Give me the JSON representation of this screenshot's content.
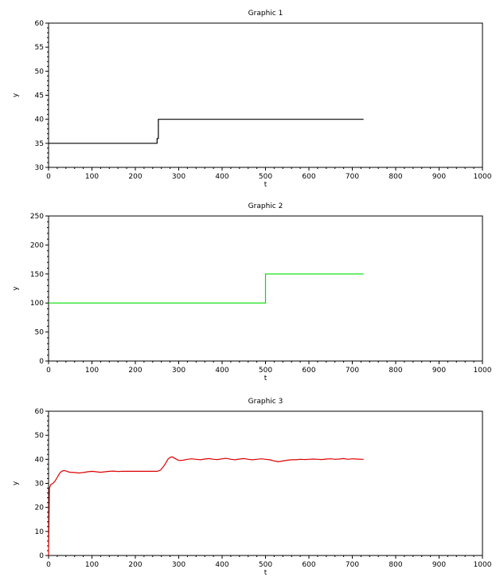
{
  "chart_data": [
    {
      "type": "line",
      "title": "Graphic 1",
      "xlabel": "t",
      "ylabel": "y",
      "xlim": [
        0,
        1000
      ],
      "ylim": [
        30,
        60
      ],
      "xticks": [
        0,
        100,
        200,
        300,
        400,
        500,
        600,
        700,
        800,
        900,
        1000
      ],
      "yticks": [
        30,
        35,
        40,
        45,
        50,
        55,
        60
      ],
      "grid": false,
      "series": [
        {
          "color": "#000000",
          "x": [
            0,
            250,
            250,
            253,
            253,
            726
          ],
          "y": [
            35,
            35,
            36,
            36,
            40,
            40
          ]
        }
      ]
    },
    {
      "type": "line",
      "title": "Graphic 2",
      "xlabel": "t",
      "ylabel": "y",
      "xlim": [
        0,
        1000
      ],
      "ylim": [
        0,
        250
      ],
      "xticks": [
        0,
        100,
        200,
        300,
        400,
        500,
        600,
        700,
        800,
        900,
        1000
      ],
      "yticks": [
        0,
        50,
        100,
        150,
        200,
        250
      ],
      "grid": false,
      "series": [
        {
          "color": "#00dd00",
          "x": [
            0,
            500,
            500,
            726
          ],
          "y": [
            100,
            100,
            150,
            150
          ]
        }
      ]
    },
    {
      "type": "line",
      "title": "Graphic 3",
      "xlabel": "t",
      "ylabel": "y",
      "xlim": [
        0,
        1000
      ],
      "ylim": [
        0,
        60
      ],
      "xticks": [
        0,
        100,
        200,
        300,
        400,
        500,
        600,
        700,
        800,
        900,
        1000
      ],
      "yticks": [
        0,
        10,
        20,
        30,
        40,
        50,
        60
      ],
      "grid": false,
      "series": [
        {
          "color": "#dd0000",
          "x": [
            0,
            2,
            5,
            10,
            15,
            20,
            25,
            30,
            35,
            40,
            45,
            50,
            60,
            70,
            80,
            90,
            100,
            110,
            120,
            130,
            140,
            150,
            160,
            170,
            180,
            190,
            200,
            210,
            220,
            230,
            240,
            250,
            258,
            265,
            270,
            275,
            280,
            285,
            290,
            295,
            300,
            310,
            320,
            330,
            340,
            350,
            360,
            370,
            380,
            390,
            400,
            410,
            420,
            430,
            440,
            450,
            460,
            470,
            480,
            490,
            500,
            510,
            520,
            530,
            540,
            550,
            560,
            570,
            580,
            590,
            600,
            610,
            620,
            630,
            640,
            650,
            660,
            670,
            680,
            690,
            700,
            710,
            720,
            726
          ],
          "y": [
            0,
            28,
            29.5,
            30,
            31,
            32.5,
            34,
            35,
            35.3,
            35.2,
            34.8,
            34.6,
            34.5,
            34.3,
            34.5,
            34.8,
            35,
            34.8,
            34.6,
            34.8,
            35,
            35.1,
            34.9,
            35,
            35,
            35,
            35,
            35,
            35,
            35,
            35,
            35,
            35.5,
            37,
            38.5,
            40,
            40.8,
            41,
            40.5,
            40,
            39.5,
            39.6,
            40,
            40.2,
            40,
            39.8,
            40.1,
            40.3,
            40,
            39.9,
            40.2,
            40.4,
            40,
            39.8,
            40.1,
            40.3,
            40,
            39.8,
            40,
            40.2,
            40,
            39.8,
            39.3,
            39,
            39.3,
            39.6,
            39.8,
            39.8,
            40,
            39.9,
            40,
            40.1,
            40,
            39.9,
            40.1,
            40.2,
            40,
            40.1,
            40.3,
            40,
            40.2,
            40.1,
            40,
            40
          ]
        }
      ]
    }
  ]
}
